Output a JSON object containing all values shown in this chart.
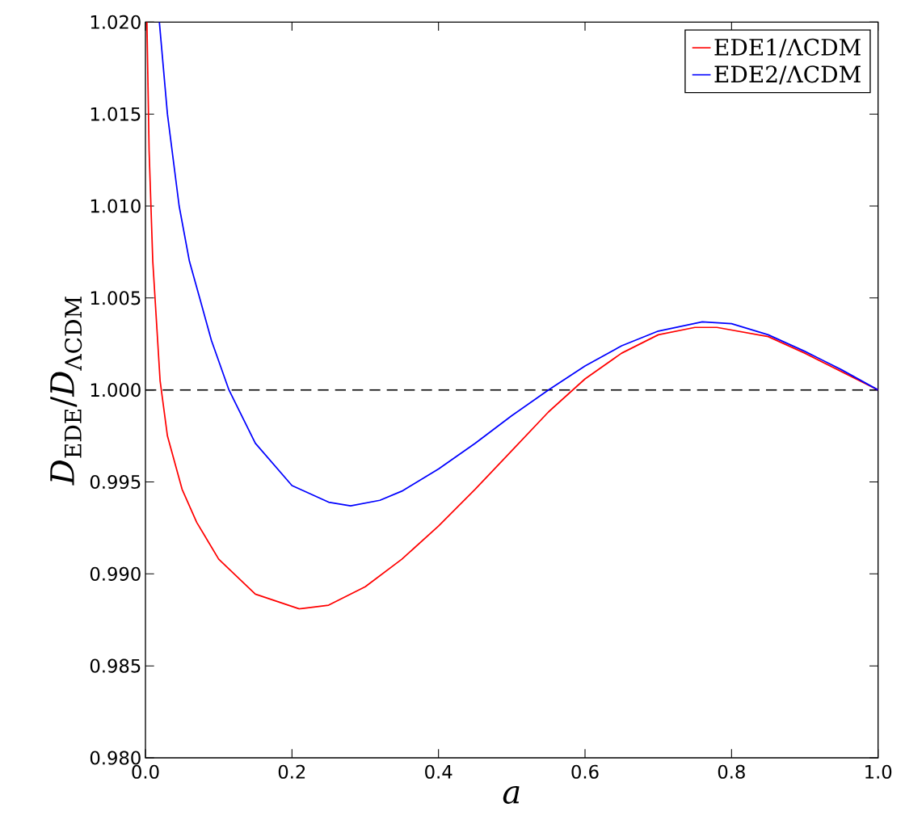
{
  "chart_data": {
    "type": "line",
    "xlabel": "*a*",
    "ylabel": "*D*$_{EDE}$/*D*$_{ΛCDM}$",
    "xlim": [
      0,
      1
    ],
    "ylim": [
      0.98,
      1.02
    ],
    "xticks": [
      {
        "value": 0,
        "label": "0.0"
      },
      {
        "value": 0.2,
        "label": "0.2"
      },
      {
        "value": 0.4,
        "label": "0.4"
      },
      {
        "value": 0.6,
        "label": "0.6"
      },
      {
        "value": 0.8,
        "label": "0.8"
      },
      {
        "value": 1,
        "label": "1.0"
      }
    ],
    "yticks": [
      {
        "value": 0.98,
        "label": "0.980"
      },
      {
        "value": 0.985,
        "label": "0.985"
      },
      {
        "value": 0.99,
        "label": "0.990"
      },
      {
        "value": 0.995,
        "label": "0.995"
      },
      {
        "value": 1,
        "label": "1.000"
      },
      {
        "value": 1.005,
        "label": "1.005"
      },
      {
        "value": 1.01,
        "label": "1.010"
      },
      {
        "value": 1.015,
        "label": "1.015"
      },
      {
        "value": 1.02,
        "label": "1.020"
      }
    ],
    "legend": "top right",
    "grid": false,
    "marker": "none",
    "line_style": "solid",
    "ref_lines": [
      {
        "axis": "y",
        "value": 1.0,
        "color": "#000000",
        "line_style": "dashed"
      }
    ],
    "series": [
      {
        "name": "EDE1/ΛCDM",
        "color": "#ff0000",
        "x": [
          0.002,
          0.005,
          0.01,
          0.02,
          0.03,
          0.05,
          0.07,
          0.1,
          0.15,
          0.21,
          0.25,
          0.3,
          0.35,
          0.4,
          0.45,
          0.5,
          0.55,
          0.6,
          0.65,
          0.7,
          0.75,
          0.78,
          0.85,
          0.9,
          0.95,
          1.0
        ],
        "values": [
          1.02,
          1.013,
          1.007,
          1.0005,
          0.9975,
          0.9946,
          0.9928,
          0.9908,
          0.9889,
          0.9881,
          0.9883,
          0.9893,
          0.9908,
          0.9926,
          0.9946,
          0.9967,
          0.9988,
          1.0006,
          1.002,
          1.003,
          1.0034,
          1.0034,
          1.0029,
          1.002,
          1.001,
          1.0
        ]
      },
      {
        "name": "EDE2/ΛCDM",
        "color": "#0000ff",
        "x": [
          0.019,
          0.03,
          0.046,
          0.06,
          0.074,
          0.09,
          0.114,
          0.15,
          0.2,
          0.25,
          0.28,
          0.32,
          0.35,
          0.4,
          0.45,
          0.5,
          0.55,
          0.6,
          0.65,
          0.7,
          0.76,
          0.8,
          0.85,
          0.9,
          0.95,
          1.0
        ],
        "values": [
          1.02,
          1.015,
          1.01,
          1.007,
          1.005,
          1.0027,
          1.0,
          0.9971,
          0.9948,
          0.9939,
          0.9937,
          0.994,
          0.9945,
          0.9957,
          0.9971,
          0.9986,
          1.0,
          1.0013,
          1.0024,
          1.0032,
          1.0037,
          1.0036,
          1.003,
          1.0021,
          1.0011,
          1.0
        ]
      }
    ]
  }
}
